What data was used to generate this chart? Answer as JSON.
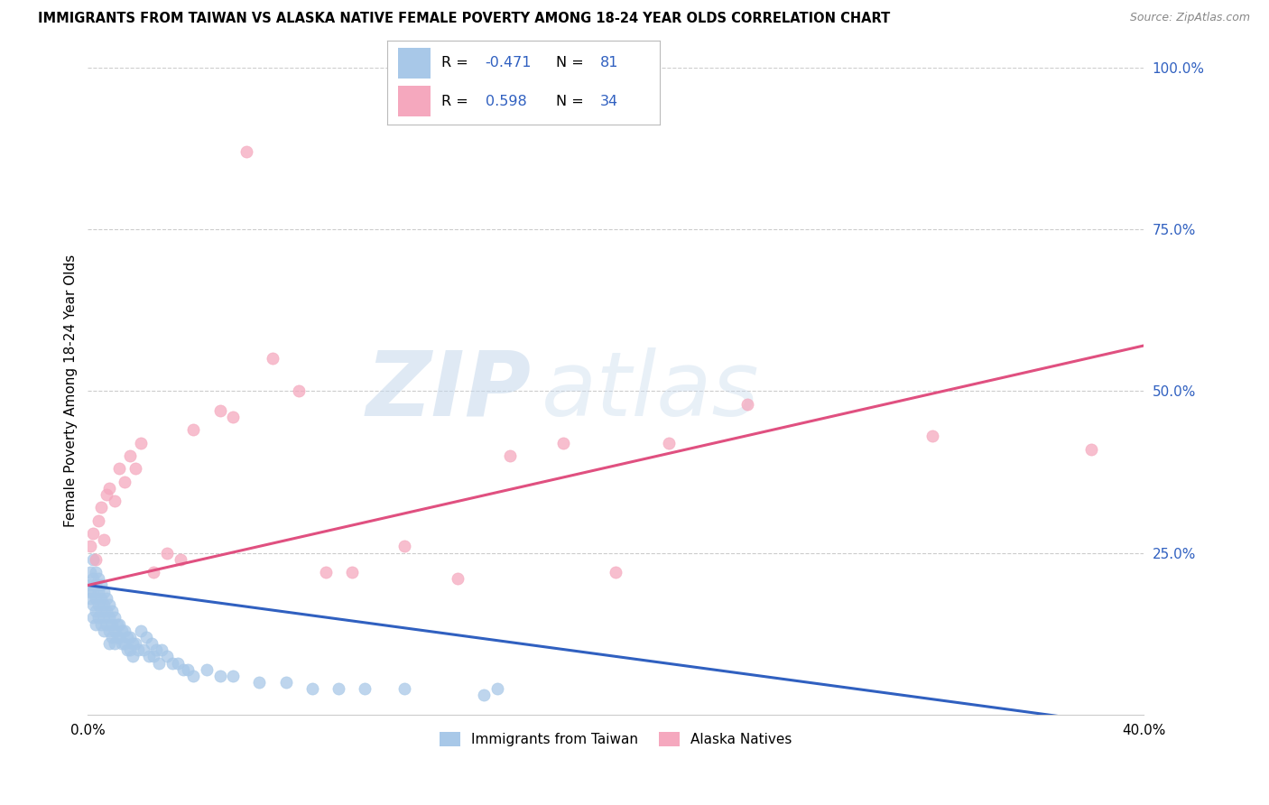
{
  "title": "IMMIGRANTS FROM TAIWAN VS ALASKA NATIVE FEMALE POVERTY AMONG 18-24 YEAR OLDS CORRELATION CHART",
  "source": "Source: ZipAtlas.com",
  "ylabel": "Female Poverty Among 18-24 Year Olds",
  "legend_label1": "Immigrants from Taiwan",
  "legend_label2": "Alaska Natives",
  "R1": -0.471,
  "N1": 81,
  "R2": 0.598,
  "N2": 34,
  "color_blue": "#a8c8e8",
  "color_pink": "#f5a8be",
  "color_blue_line": "#3060c0",
  "color_pink_line": "#e05080",
  "color_blue_text": "#3060c0",
  "watermark_zip": "ZIP",
  "watermark_atlas": "atlas",
  "xlim": [
    0.0,
    0.4
  ],
  "ylim": [
    0.0,
    1.0
  ],
  "blue_trend_x": [
    0.0,
    0.4
  ],
  "blue_trend_y": [
    0.2,
    -0.02
  ],
  "pink_trend_x": [
    0.0,
    0.4
  ],
  "pink_trend_y": [
    0.2,
    0.57
  ],
  "blue_x": [
    0.001,
    0.001,
    0.001,
    0.001,
    0.002,
    0.002,
    0.002,
    0.002,
    0.002,
    0.003,
    0.003,
    0.003,
    0.003,
    0.003,
    0.004,
    0.004,
    0.004,
    0.004,
    0.005,
    0.005,
    0.005,
    0.005,
    0.006,
    0.006,
    0.006,
    0.006,
    0.007,
    0.007,
    0.007,
    0.008,
    0.008,
    0.008,
    0.008,
    0.009,
    0.009,
    0.009,
    0.01,
    0.01,
    0.01,
    0.011,
    0.011,
    0.012,
    0.012,
    0.013,
    0.013,
    0.014,
    0.014,
    0.015,
    0.015,
    0.016,
    0.016,
    0.017,
    0.017,
    0.018,
    0.019,
    0.02,
    0.021,
    0.022,
    0.023,
    0.024,
    0.025,
    0.026,
    0.027,
    0.028,
    0.03,
    0.032,
    0.034,
    0.036,
    0.038,
    0.04,
    0.045,
    0.05,
    0.055,
    0.065,
    0.075,
    0.085,
    0.095,
    0.105,
    0.12,
    0.15,
    0.155
  ],
  "blue_y": [
    0.22,
    0.2,
    0.19,
    0.18,
    0.24,
    0.21,
    0.19,
    0.17,
    0.15,
    0.22,
    0.2,
    0.18,
    0.16,
    0.14,
    0.21,
    0.19,
    0.17,
    0.15,
    0.2,
    0.18,
    0.16,
    0.14,
    0.19,
    0.17,
    0.15,
    0.13,
    0.18,
    0.16,
    0.14,
    0.17,
    0.15,
    0.13,
    0.11,
    0.16,
    0.14,
    0.12,
    0.15,
    0.13,
    0.11,
    0.14,
    0.12,
    0.14,
    0.12,
    0.13,
    0.11,
    0.13,
    0.11,
    0.12,
    0.1,
    0.12,
    0.1,
    0.11,
    0.09,
    0.11,
    0.1,
    0.13,
    0.1,
    0.12,
    0.09,
    0.11,
    0.09,
    0.1,
    0.08,
    0.1,
    0.09,
    0.08,
    0.08,
    0.07,
    0.07,
    0.06,
    0.07,
    0.06,
    0.06,
    0.05,
    0.05,
    0.04,
    0.04,
    0.04,
    0.04,
    0.03,
    0.04
  ],
  "pink_x": [
    0.001,
    0.002,
    0.003,
    0.004,
    0.005,
    0.006,
    0.007,
    0.008,
    0.01,
    0.012,
    0.014,
    0.016,
    0.018,
    0.02,
    0.025,
    0.03,
    0.035,
    0.04,
    0.05,
    0.055,
    0.06,
    0.07,
    0.08,
    0.09,
    0.1,
    0.12,
    0.14,
    0.16,
    0.18,
    0.2,
    0.22,
    0.25,
    0.32,
    0.38
  ],
  "pink_y": [
    0.26,
    0.28,
    0.24,
    0.3,
    0.32,
    0.27,
    0.34,
    0.35,
    0.33,
    0.38,
    0.36,
    0.4,
    0.38,
    0.42,
    0.22,
    0.25,
    0.24,
    0.44,
    0.47,
    0.46,
    0.87,
    0.55,
    0.5,
    0.22,
    0.22,
    0.26,
    0.21,
    0.4,
    0.42,
    0.22,
    0.42,
    0.48,
    0.43,
    0.41
  ]
}
